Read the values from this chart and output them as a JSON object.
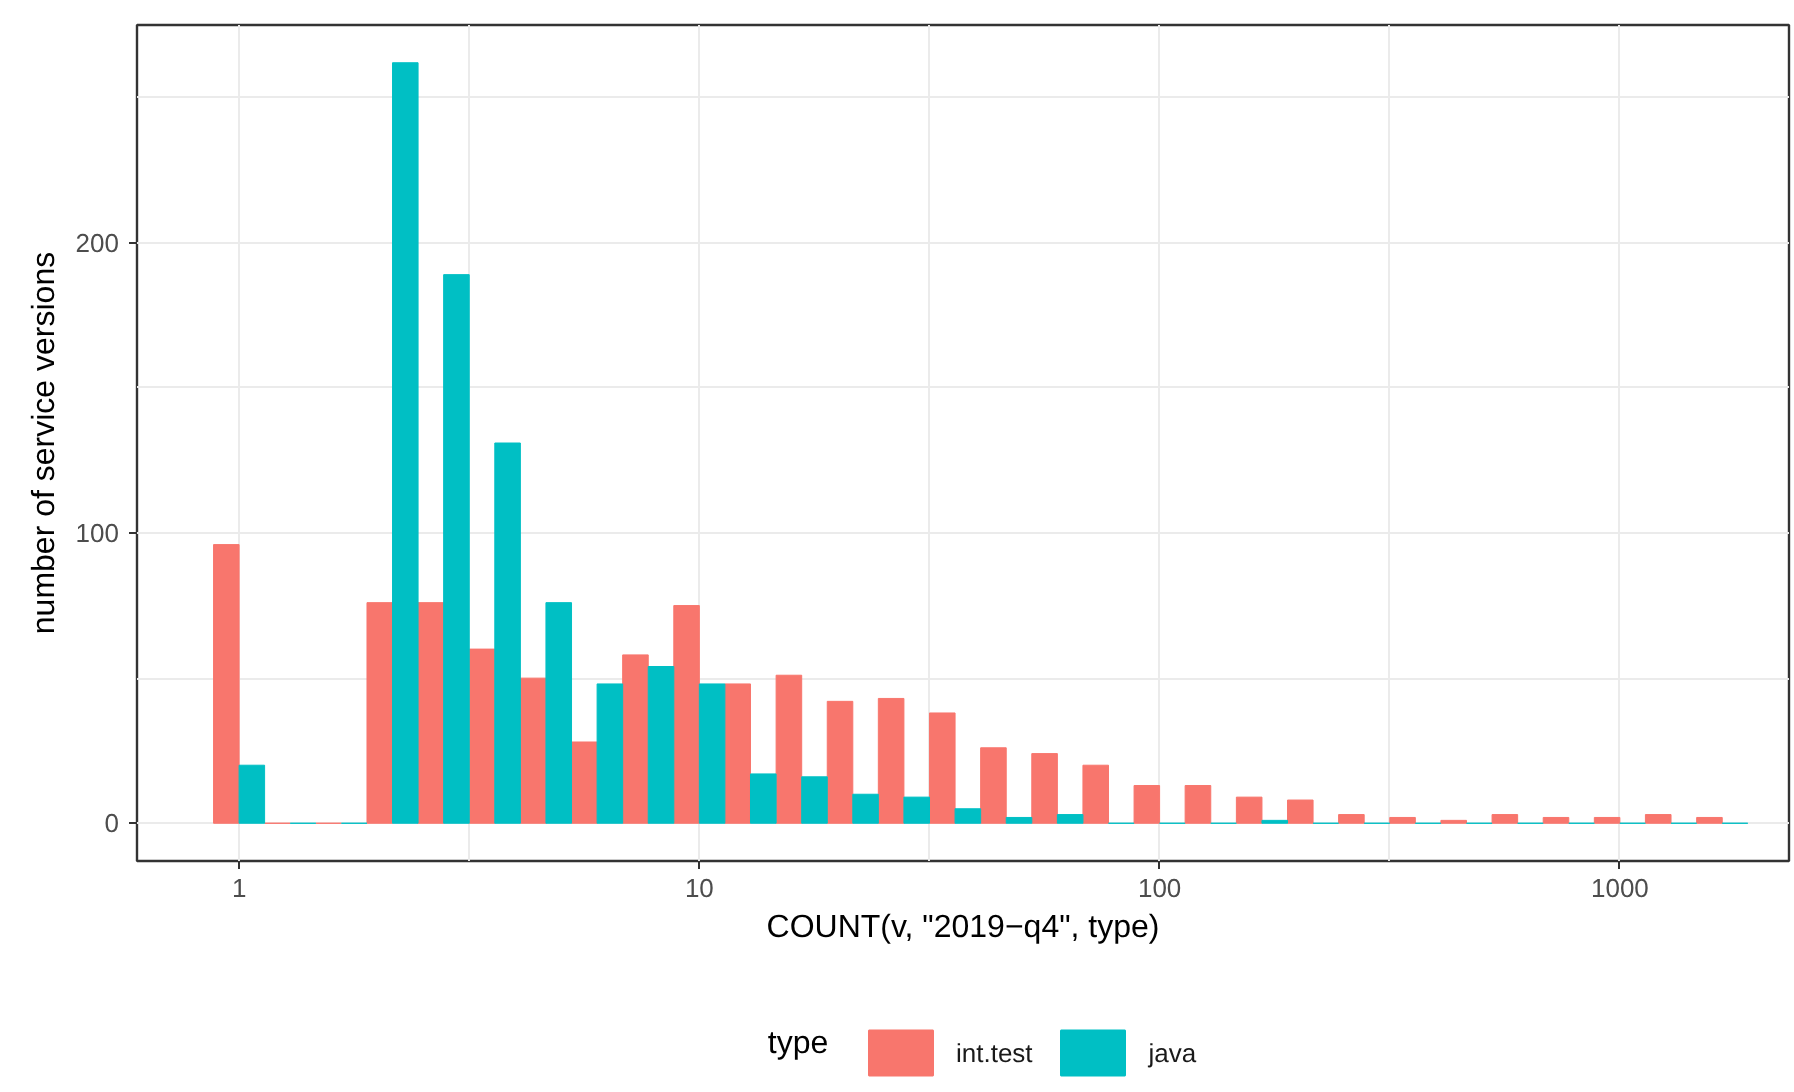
{
  "chart_data": {
    "type": "histogram",
    "xlabel": "COUNT(v, \"2019−q4\", type)",
    "ylabel": "number of service versions",
    "legend_title": "type",
    "bins": [
      0.88,
      1.136,
      1.468,
      1.896,
      2.448,
      3.162,
      4.084,
      5.275,
      6.813,
      8.799,
      11.36,
      14.68,
      18.96,
      24.48,
      31.62,
      40.84,
      52.75,
      68.13,
      87.99,
      113.6,
      146.8,
      189.6,
      244.8,
      316.2,
      408.4,
      527.5,
      681.3,
      879.9,
      1136,
      1468,
      1896
    ],
    "series": [
      {
        "name": "int.test",
        "color": "#f8766d",
        "values": [
          96,
          0,
          0,
          76,
          76,
          60,
          50,
          28,
          58,
          75,
          48,
          51,
          42,
          43,
          38,
          26,
          24,
          20,
          13,
          13,
          9,
          8,
          3,
          2,
          1,
          3,
          2,
          2,
          3,
          2
        ]
      },
      {
        "name": "java",
        "color": "#00bfc4",
        "values": [
          20,
          0,
          0,
          262,
          189,
          131,
          76,
          48,
          54,
          48,
          17,
          16,
          10,
          9,
          5,
          2,
          3,
          0,
          0,
          0,
          1,
          0,
          0,
          0,
          0,
          0,
          0,
          0,
          0,
          0
        ]
      }
    ],
    "log": "x",
    "xlim": [
      0.6,
      2330
    ],
    "ylim": [
      -13,
      275
    ],
    "xticks": [
      1,
      {
        "value": 3.162,
        "label": null
      },
      10,
      {
        "value": 31.62,
        "label": null
      },
      100,
      {
        "value": 316.2,
        "label": null
      },
      1000
    ],
    "yticks": [
      0,
      {
        "value": 50,
        "label": null
      },
      100,
      {
        "value": 150,
        "label": null
      },
      200,
      {
        "value": 250,
        "label": null
      }
    ],
    "grid": true,
    "legend": "bottom"
  }
}
